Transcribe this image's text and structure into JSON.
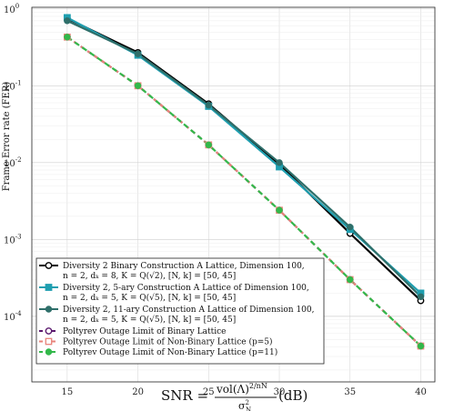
{
  "chart_data": {
    "type": "line",
    "x": [
      15,
      20,
      25,
      30,
      35,
      40
    ],
    "xlim": [
      12.5,
      41
    ],
    "ylim": [
      1.4e-05,
      1.05
    ],
    "yscale": "log",
    "grid": true,
    "legend_position": "bottom-left",
    "ylabel": "Frame Error rate (FER)",
    "xlabel_text": "SNR =",
    "xlabel_frac_num": "vol(Λ)",
    "xlabel_frac_num_sup": "2/nN",
    "xlabel_frac_den": "σ",
    "xlabel_frac_den_sub": "N",
    "xlabel_frac_den_sup": "2",
    "xlabel_unit": "(dB)",
    "x_ticks": [
      "15",
      "20",
      "25",
      "30",
      "35",
      "40"
    ],
    "y_ticks": [
      {
        "value": 1,
        "base": "10",
        "exp": "0"
      },
      {
        "value": 0.1,
        "base": "10",
        "exp": "-1"
      },
      {
        "value": 0.01,
        "base": "10",
        "exp": "-2"
      },
      {
        "value": 0.001,
        "base": "10",
        "exp": "-3"
      },
      {
        "value": 0.0001,
        "base": "10",
        "exp": "-4"
      }
    ],
    "series": [
      {
        "name_line1": "Diversity 2 Binary Construction A Lattice, Dimension 100,",
        "name_line2": "n = 2, dₖ = 8, K = Q(√2), [N, k] = [50, 45]",
        "color": "#000000",
        "dash": "",
        "marker": "circle-open",
        "width": 2.2,
        "values": [
          0.75,
          0.27,
          0.058,
          0.0095,
          0.0012,
          0.00016
        ]
      },
      {
        "name_line1": "Diversity 2, 5-ary Construction A Lattice of Dimension 100,",
        "name_line2": "n = 2, dₖ = 5, K = Q(√5), [N, k] = [50, 45]",
        "color": "#1f9fb0",
        "dash": "",
        "marker": "square-filled",
        "width": 2.2,
        "values": [
          0.77,
          0.25,
          0.054,
          0.0088,
          0.00135,
          0.0002
        ]
      },
      {
        "name_line1": "Diversity 2, 11-ary Construction A Lattice of Dimension 100,",
        "name_line2": "n = 2, dₖ = 5, K = Q(√5), [N, k] = [50, 45]",
        "color": "#2f6f6a",
        "dash": "",
        "marker": "circle-filled",
        "width": 2.2,
        "values": [
          0.7,
          0.26,
          0.056,
          0.01,
          0.00145,
          0.00018
        ]
      },
      {
        "name_line1": "Poltyrev Outage Limit of Binary Lattice",
        "color": "#5b1a6e",
        "dash": "5,4",
        "marker": "circle-open",
        "width": 2.2,
        "values": [
          0.43,
          0.1,
          0.017,
          0.0024,
          0.0003,
          4.1e-05
        ]
      },
      {
        "name_line1": "Poltyrev Outage Limit of Non-Binary Lattice (p=5)",
        "color": "#e8837a",
        "dash": "5,4",
        "marker": "square-open",
        "width": 2.2,
        "values": [
          0.43,
          0.1,
          0.017,
          0.0024,
          0.0003,
          4.1e-05
        ]
      },
      {
        "name_line1": "Poltyrev Outage Limit of Non-Binary Lattice (p=11)",
        "color": "#33b84a",
        "dash": "6,4",
        "marker": "circle-filled",
        "width": 2.2,
        "values": [
          0.43,
          0.1,
          0.017,
          0.0024,
          0.0003,
          4.1e-05
        ]
      }
    ]
  }
}
